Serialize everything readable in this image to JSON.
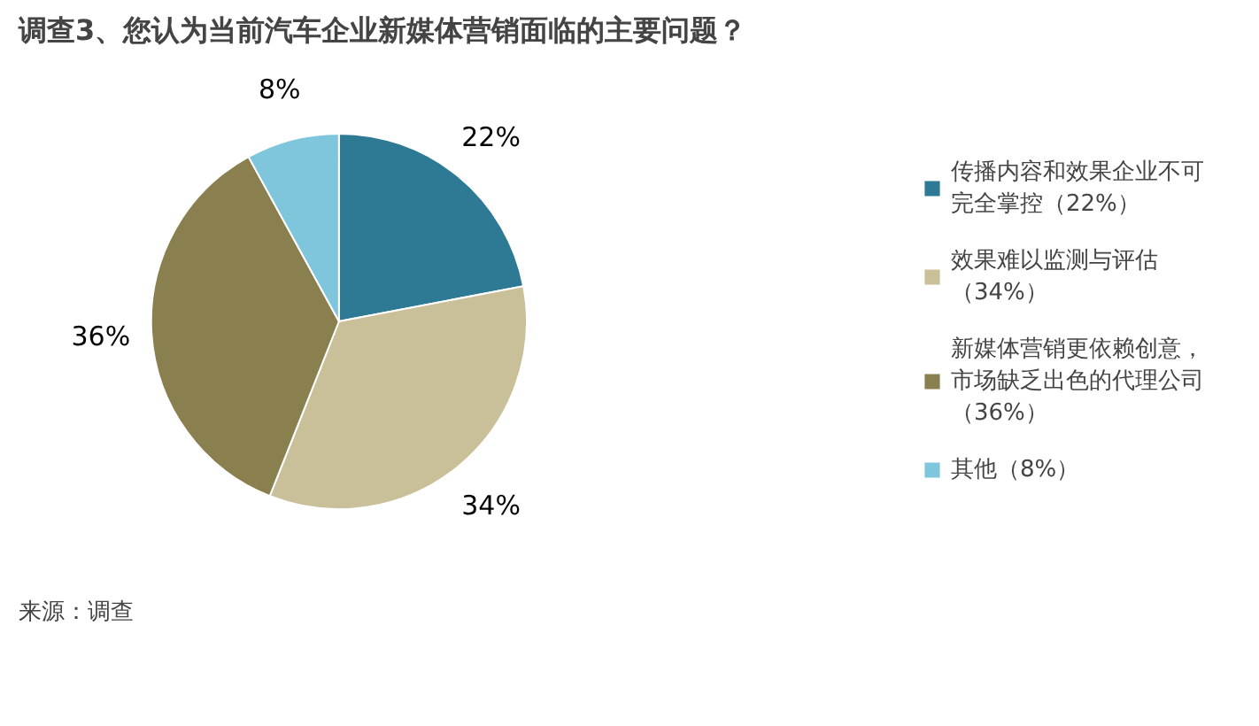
{
  "chart_data": {
    "type": "pie",
    "title": "调查3、您认为当前汽车企业新媒体营销面临的主要问题？",
    "categories": [
      "传播内容和效果企业不可完全掌控（22%）",
      "效果难以监测与评估（34%）",
      "新媒体营销更依赖创意，市场缺乏出色的代理公司（36%）",
      "其他（8%）"
    ],
    "values": [
      22,
      34,
      36,
      8
    ],
    "colors": [
      "#2e7a94",
      "#c9c09a",
      "#8a7f4e",
      "#7fc6dc"
    ],
    "value_labels": [
      "22%",
      "34%",
      "36%",
      "8%"
    ],
    "legend": "right",
    "annotations": [
      "来源：调查"
    ]
  }
}
